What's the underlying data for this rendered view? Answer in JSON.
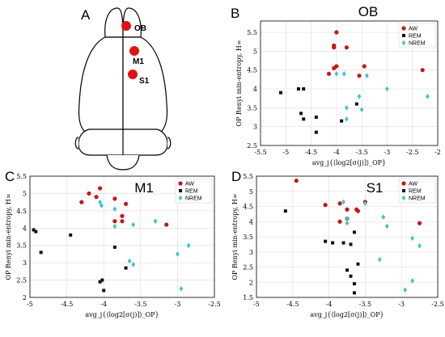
{
  "panels": {
    "A": {
      "letter": "A",
      "regions": [
        "OB",
        "M1",
        "S1"
      ]
    },
    "B": {
      "letter": "B"
    },
    "C": {
      "letter": "C"
    },
    "D": {
      "letter": "D"
    }
  },
  "colors": {
    "AW": "#c0191c",
    "REM": "#111111",
    "NREM": "#3ec6c9"
  },
  "chart_data": [
    {
      "type": "scatter",
      "panel": "B",
      "title": "OB",
      "xlabel": "avg_j{⟨log2[σ(j)]⟩_OP}",
      "ylabel": "OP Renyi min-entropy, H∞",
      "xlim": [
        -5.5,
        -2
      ],
      "ylim": [
        2.5,
        5.8
      ],
      "xticks": [
        "-5.5",
        "-5",
        "-4.5",
        "-4",
        "-3.5",
        "-3",
        "-2.5",
        "-2"
      ],
      "yticks": [
        "2.5",
        "3",
        "3.5",
        "4",
        "4.5",
        "5",
        "5.5"
      ],
      "grid": true,
      "legend": "top-right",
      "series": [
        {
          "name": "AW",
          "marker": "circle",
          "points": [
            [
              -4.0,
              5.5
            ],
            [
              -4.05,
              5.15
            ],
            [
              -4.05,
              5.1
            ],
            [
              -3.8,
              5.1
            ],
            [
              -4.0,
              4.6
            ],
            [
              -4.05,
              4.55
            ],
            [
              -4.15,
              4.4
            ],
            [
              -3.45,
              4.6
            ],
            [
              -3.55,
              4.35
            ],
            [
              -2.3,
              4.5
            ]
          ]
        },
        {
          "name": "REM",
          "marker": "square",
          "points": [
            [
              -5.1,
              3.9
            ],
            [
              -4.75,
              4.0
            ],
            [
              -4.65,
              4.0
            ],
            [
              -4.7,
              3.35
            ],
            [
              -4.65,
              3.2
            ],
            [
              -4.4,
              3.25
            ],
            [
              -4.4,
              2.85
            ],
            [
              -3.9,
              3.15
            ],
            [
              -3.6,
              3.6
            ]
          ]
        },
        {
          "name": "NREM",
          "marker": "diamond",
          "points": [
            [
              -4.0,
              4.4
            ],
            [
              -3.85,
              4.4
            ],
            [
              -3.4,
              4.35
            ],
            [
              -3.0,
              4.0
            ],
            [
              -2.2,
              3.8
            ],
            [
              -3.8,
              3.5
            ],
            [
              -3.55,
              3.8
            ],
            [
              -3.5,
              3.45
            ],
            [
              -3.8,
              3.2
            ]
          ]
        }
      ]
    },
    {
      "type": "scatter",
      "panel": "C",
      "title": "M1",
      "xlabel": "avg_j{⟨log2[σ(j)]⟩_OP}",
      "ylabel": "OP Renyi min-entropy, H∞",
      "xlim": [
        -5,
        -2.5
      ],
      "ylim": [
        2,
        5.5
      ],
      "xticks": [
        "-5",
        "-4.5",
        "-4",
        "-3.5",
        "-3",
        "-2.5"
      ],
      "yticks": [
        "2",
        "2.5",
        "3",
        "3.5",
        "4",
        "4.5",
        "5",
        "5.5"
      ],
      "grid": true,
      "legend": "top-right",
      "series": [
        {
          "name": "AW",
          "marker": "circle",
          "points": [
            [
              -4.2,
              5.0
            ],
            [
              -4.3,
              4.75
            ],
            [
              -4.1,
              4.9
            ],
            [
              -4.05,
              5.15
            ],
            [
              -3.85,
              4.85
            ],
            [
              -3.7,
              4.7
            ],
            [
              -3.75,
              4.2
            ],
            [
              -3.75,
              4.35
            ],
            [
              -3.85,
              4.2
            ],
            [
              -3.15,
              4.1
            ]
          ]
        },
        {
          "name": "REM",
          "marker": "square",
          "points": [
            [
              -4.95,
              3.95
            ],
            [
              -4.92,
              3.9
            ],
            [
              -4.85,
              3.3
            ],
            [
              -4.45,
              3.8
            ],
            [
              -4.05,
              2.45
            ],
            [
              -4.02,
              2.5
            ],
            [
              -3.85,
              3.45
            ],
            [
              -3.7,
              2.85
            ],
            [
              -4.0,
              2.2
            ]
          ]
        },
        {
          "name": "NREM",
          "marker": "diamond",
          "points": [
            [
              -4.05,
              4.75
            ],
            [
              -4.03,
              4.65
            ],
            [
              -3.85,
              4.55
            ],
            [
              -3.85,
              4.05
            ],
            [
              -3.6,
              4.1
            ],
            [
              -3.3,
              4.2
            ],
            [
              -3.0,
              3.25
            ],
            [
              -2.85,
              3.5
            ],
            [
              -2.95,
              2.25
            ],
            [
              -3.6,
              2.95
            ],
            [
              -3.65,
              3.05
            ]
          ]
        }
      ]
    },
    {
      "type": "scatter",
      "panel": "D",
      "title": "S1",
      "xlabel": "avg_j{⟨log2[σ(j)]⟩_OP}",
      "ylabel": "OP Renyi min-entropy, H∞",
      "xlim": [
        -5,
        -2.5
      ],
      "ylim": [
        1.5,
        5.5
      ],
      "xticks": [
        "-5",
        "-4.5",
        "-4",
        "-3.5",
        "-3",
        "-2.5"
      ],
      "yticks": [
        "1.5",
        "2",
        "2.5",
        "3",
        "3.5",
        "4",
        "4.5",
        "5",
        "5.5"
      ],
      "grid": true,
      "legend": "top-right",
      "series": [
        {
          "name": "AW",
          "marker": "circle",
          "points": [
            [
              -4.45,
              5.35
            ],
            [
              -4.05,
              4.55
            ],
            [
              -3.85,
              4.6
            ],
            [
              -3.75,
              4.4
            ],
            [
              -3.75,
              4.1
            ],
            [
              -3.62,
              4.4
            ],
            [
              -3.6,
              4.35
            ],
            [
              -3.5,
              4.65
            ],
            [
              -2.75,
              3.95
            ],
            [
              -3.85,
              4.0
            ]
          ]
        },
        {
          "name": "REM",
          "marker": "square",
          "points": [
            [
              -4.6,
              4.35
            ],
            [
              -4.05,
              3.35
            ],
            [
              -3.95,
              3.3
            ],
            [
              -3.8,
              3.3
            ],
            [
              -3.65,
              3.65
            ],
            [
              -3.7,
              3.25
            ],
            [
              -3.75,
              2.4
            ],
            [
              -3.7,
              2.2
            ],
            [
              -3.65,
              1.65
            ],
            [
              -3.65,
              1.95
            ],
            [
              -3.6,
              2.6
            ]
          ]
        },
        {
          "name": "NREM",
          "marker": "diamond",
          "points": [
            [
              -3.8,
              4.65
            ],
            [
              -3.75,
              4.1
            ],
            [
              -3.75,
              3.95
            ],
            [
              -3.5,
              4.6
            ],
            [
              -3.2,
              3.85
            ],
            [
              -3.25,
              4.15
            ],
            [
              -3.3,
              2.75
            ],
            [
              -2.85,
              3.45
            ],
            [
              -2.75,
              3.2
            ],
            [
              -2.85,
              2.05
            ],
            [
              -2.95,
              1.75
            ]
          ]
        }
      ]
    }
  ]
}
